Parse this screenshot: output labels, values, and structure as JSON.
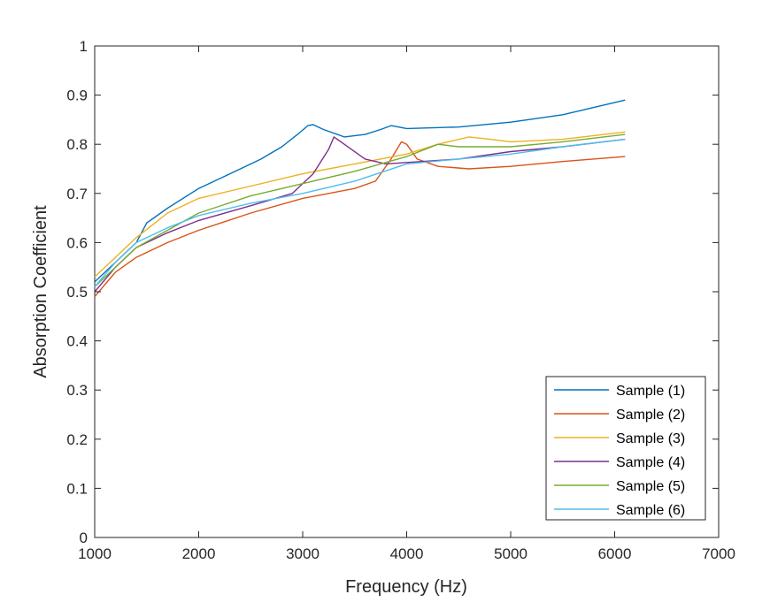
{
  "chart_data": {
    "type": "line",
    "xlabel": "Frequency (Hz)",
    "ylabel": "Absorption Coefficient",
    "xlim": [
      1000,
      7000
    ],
    "ylim": [
      0,
      1
    ],
    "xticks": [
      "1000",
      "2000",
      "3000",
      "4000",
      "5000",
      "6000",
      "7000"
    ],
    "yticks": [
      "0",
      "0.1",
      "0.2",
      "0.3",
      "0.4",
      "0.5",
      "0.6",
      "0.7",
      "0.8",
      "0.9",
      "1"
    ],
    "grid": false,
    "legend_position": "bottom-right",
    "series": [
      {
        "name": "Sample (1)",
        "color": "#0072BD",
        "x": [
          1000,
          1200,
          1400,
          1500,
          1700,
          2000,
          2300,
          2600,
          2800,
          2950,
          3050,
          3100,
          3200,
          3400,
          3600,
          3750,
          3850,
          4000,
          4500,
          5000,
          5500,
          6100
        ],
        "y": [
          0.52,
          0.56,
          0.6,
          0.64,
          0.67,
          0.71,
          0.74,
          0.77,
          0.795,
          0.82,
          0.838,
          0.84,
          0.83,
          0.815,
          0.82,
          0.83,
          0.838,
          0.832,
          0.835,
          0.845,
          0.86,
          0.89
        ]
      },
      {
        "name": "Sample (2)",
        "color": "#D95319",
        "x": [
          1000,
          1200,
          1400,
          1700,
          2000,
          2500,
          3000,
          3500,
          3700,
          3850,
          3950,
          4000,
          4100,
          4300,
          4600,
          5000,
          5500,
          6100
        ],
        "y": [
          0.49,
          0.54,
          0.57,
          0.6,
          0.625,
          0.66,
          0.69,
          0.71,
          0.725,
          0.77,
          0.805,
          0.8,
          0.77,
          0.755,
          0.75,
          0.755,
          0.765,
          0.775
        ]
      },
      {
        "name": "Sample (3)",
        "color": "#EDB120",
        "x": [
          1000,
          1200,
          1400,
          1700,
          2000,
          2500,
          3000,
          3500,
          4000,
          4300,
          4600,
          4800,
          5000,
          5500,
          6100
        ],
        "y": [
          0.53,
          0.57,
          0.61,
          0.66,
          0.69,
          0.715,
          0.74,
          0.76,
          0.78,
          0.8,
          0.815,
          0.81,
          0.805,
          0.81,
          0.825
        ]
      },
      {
        "name": "Sample (4)",
        "color": "#7E2F8E",
        "x": [
          1000,
          1200,
          1400,
          1700,
          2000,
          2500,
          2900,
          3100,
          3250,
          3300,
          3400,
          3600,
          3800,
          4000,
          4500,
          5000,
          5500,
          6100
        ],
        "y": [
          0.5,
          0.55,
          0.59,
          0.62,
          0.645,
          0.675,
          0.7,
          0.74,
          0.79,
          0.815,
          0.8,
          0.77,
          0.76,
          0.763,
          0.77,
          0.785,
          0.795,
          0.81
        ]
      },
      {
        "name": "Sample (5)",
        "color": "#77AC30",
        "x": [
          1000,
          1200,
          1400,
          1700,
          2000,
          2500,
          3000,
          3500,
          4000,
          4300,
          4500,
          5000,
          5500,
          6100
        ],
        "y": [
          0.51,
          0.55,
          0.59,
          0.625,
          0.66,
          0.695,
          0.72,
          0.745,
          0.775,
          0.8,
          0.795,
          0.795,
          0.805,
          0.82
        ]
      },
      {
        "name": "Sample (6)",
        "color": "#4DBEEE",
        "x": [
          1000,
          1200,
          1400,
          1700,
          2000,
          2500,
          3000,
          3500,
          4000,
          4500,
          5000,
          5500,
          6100
        ],
        "y": [
          0.51,
          0.56,
          0.6,
          0.63,
          0.655,
          0.68,
          0.7,
          0.725,
          0.76,
          0.77,
          0.78,
          0.795,
          0.81
        ]
      }
    ]
  }
}
